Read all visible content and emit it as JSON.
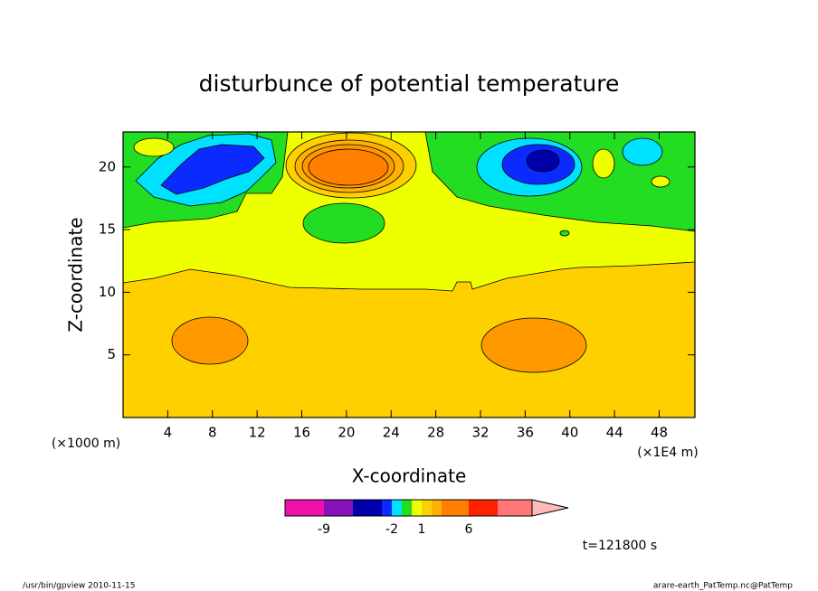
{
  "chart_data": {
    "type": "contour",
    "title": "disturbunce of potential temperature",
    "xlabel": "X-coordinate",
    "ylabel": "Z-coordinate",
    "xunit": "(×1E4 m)",
    "yunit": "(×1000 m)",
    "xlim": [
      0,
      51.2
    ],
    "ylim": [
      0,
      22.8
    ],
    "xticks": [
      4,
      8,
      12,
      16,
      20,
      24,
      28,
      32,
      36,
      40,
      44,
      48
    ],
    "yticks": [
      5,
      10,
      15,
      20
    ],
    "colorbar_ticks": [
      -9,
      -2,
      1,
      6
    ],
    "time_label": "t=121800 s",
    "footer_left": "/usr/bin/gpview  2010-11-15",
    "footer_right": "arare-earth_PatTemp.nc@PatTemp"
  }
}
